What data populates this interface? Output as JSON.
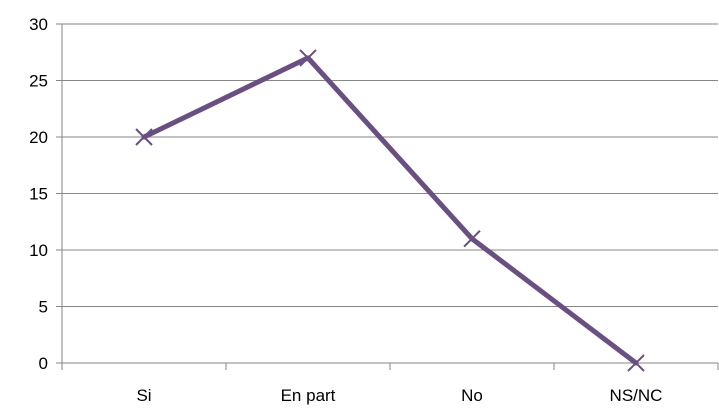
{
  "chart_data": {
    "type": "line",
    "title": "",
    "xlabel": "",
    "ylabel": "",
    "categories": [
      "Si",
      "En part",
      "No",
      "NS/NC"
    ],
    "series": [
      {
        "values": [
          20,
          27,
          11,
          0
        ],
        "color": "#6a4f82",
        "marker": "x"
      }
    ],
    "ylim": [
      0,
      30
    ],
    "yticks": [
      "0",
      "5",
      "10",
      "15",
      "20",
      "25",
      "30"
    ],
    "grid": true,
    "legend": "none"
  }
}
